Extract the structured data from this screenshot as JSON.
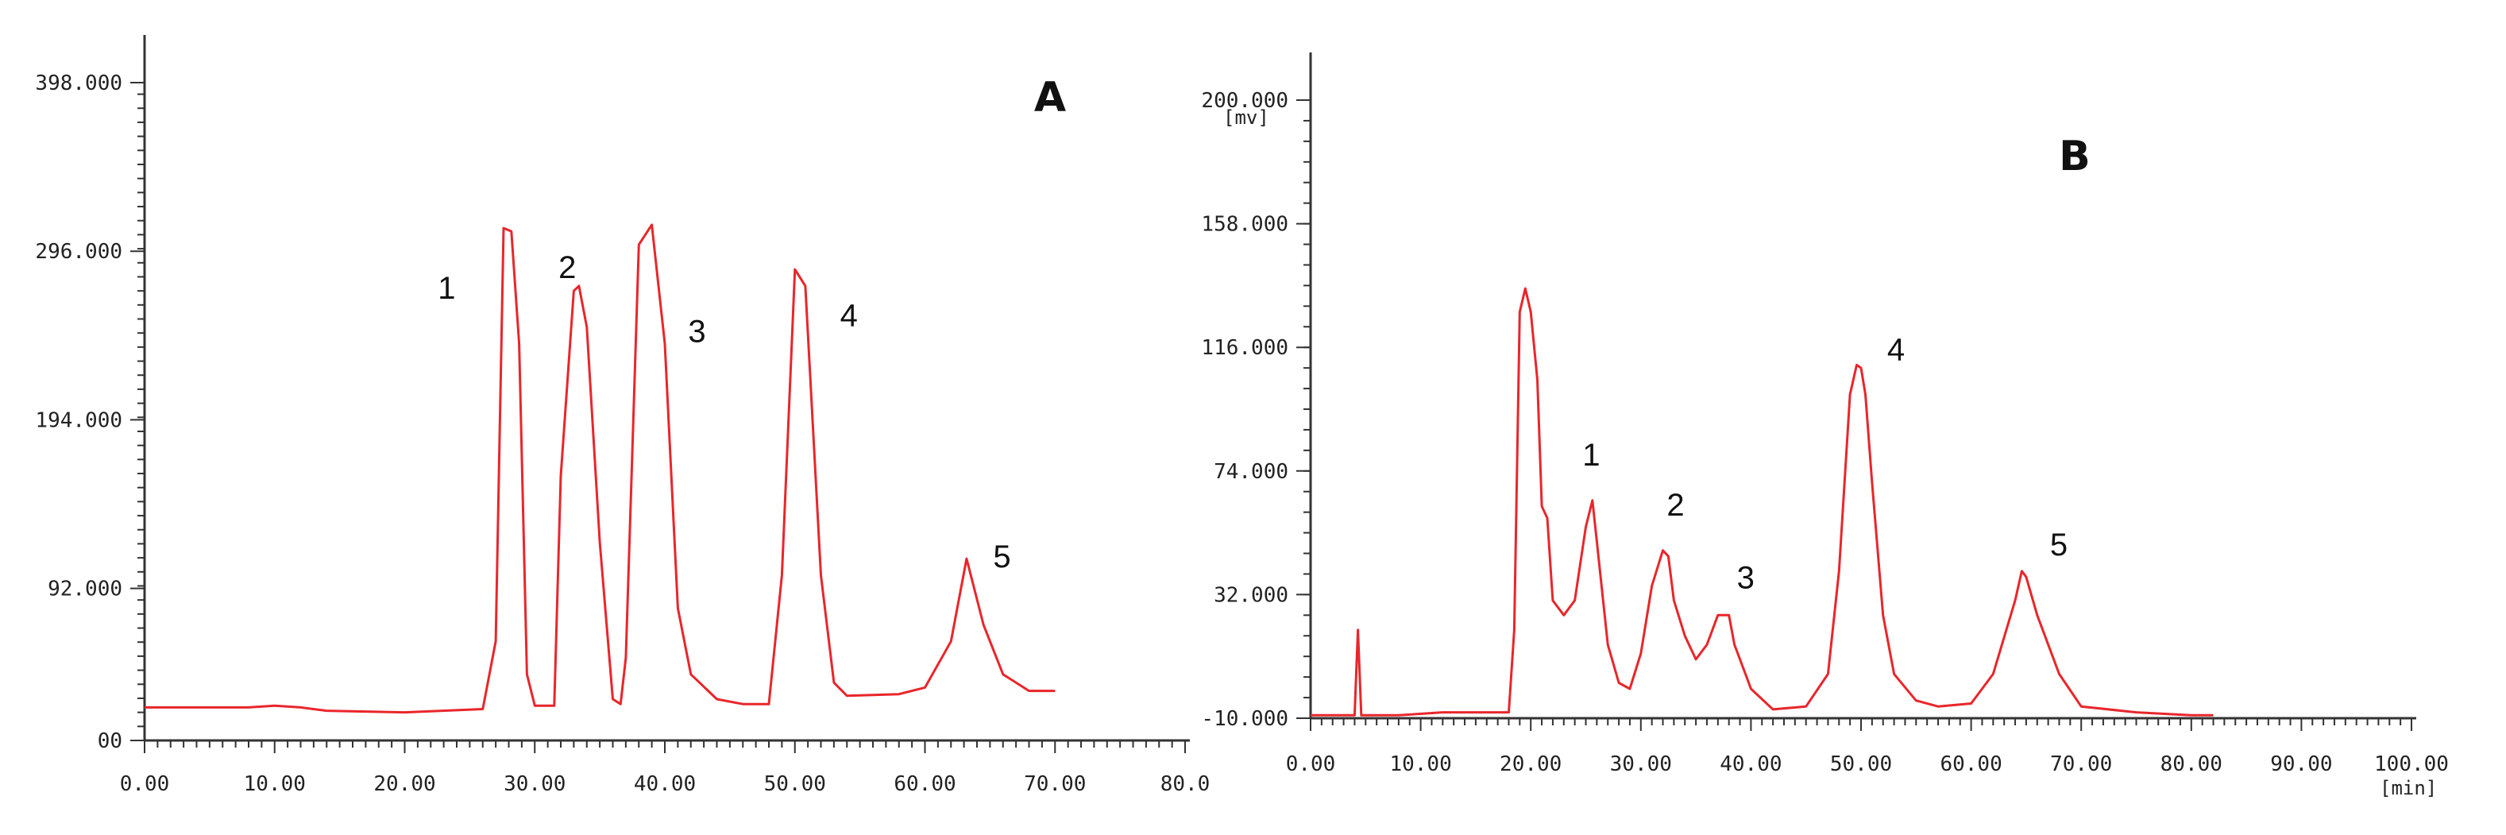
{
  "chart_data": [
    {
      "type": "line",
      "panel_label": "A",
      "x_tick_labels": [
        "0.00",
        "10.00",
        "20.00",
        "30.00",
        "40.00",
        "50.00",
        "60.00",
        "70.00",
        "80.0"
      ],
      "y_tick_labels": [
        "00",
        "92.000",
        "194.000",
        "296.000",
        "398.000"
      ],
      "x_ticks": [
        0,
        10,
        20,
        30,
        40,
        50,
        60,
        70,
        80
      ],
      "y_ticks": [
        0,
        92,
        194,
        296,
        398
      ],
      "xlim": [
        0,
        80
      ],
      "ylim": [
        0,
        398
      ],
      "grid": false,
      "color": "#e8262b",
      "series": [
        {
          "x": [
            0,
            8,
            10,
            12,
            14,
            20,
            26,
            27,
            27.6,
            28.2,
            28.8,
            29.4,
            30,
            31.5,
            32,
            33,
            33.4,
            34,
            35,
            36,
            36.6,
            37,
            38,
            39,
            40,
            41,
            42,
            44,
            46,
            48,
            49,
            50,
            50.8,
            52,
            53,
            54,
            58,
            60,
            62,
            63.2,
            64.5,
            66,
            68,
            70
          ],
          "y": [
            20,
            20,
            21,
            20,
            18,
            17,
            19,
            60,
            310,
            308,
            240,
            40,
            21,
            21,
            160,
            272,
            275,
            250,
            120,
            25,
            22,
            50,
            300,
            312,
            240,
            80,
            40,
            25,
            22,
            22,
            100,
            285,
            275,
            100,
            35,
            27,
            28,
            32,
            60,
            110,
            70,
            40,
            30,
            30
          ]
        }
      ],
      "peak_labels": [
        "1",
        "2",
        "3",
        "4",
        "5"
      ]
    },
    {
      "type": "line",
      "panel_label": "B",
      "y_unit": "[mv]",
      "x_unit": "[min]",
      "x_tick_labels": [
        "0.00",
        "10.00",
        "20.00",
        "30.00",
        "40.00",
        "50.00",
        "60.00",
        "70.00",
        "80.00",
        "90.00",
        "100.00"
      ],
      "y_tick_labels": [
        "-10.000",
        "32.000",
        "74.000",
        "116.000",
        "158.000",
        "200.000"
      ],
      "x_ticks": [
        0,
        10,
        20,
        30,
        40,
        50,
        60,
        70,
        80,
        90,
        100
      ],
      "y_ticks": [
        -10,
        32,
        74,
        116,
        158,
        200
      ],
      "xlim": [
        0,
        100
      ],
      "ylim": [
        -10,
        200
      ],
      "grid": false,
      "color": "#e8262b",
      "series": [
        {
          "x": [
            0,
            4,
            4.3,
            4.6,
            8,
            12,
            18,
            18.5,
            19,
            19.5,
            20,
            20.6,
            21,
            21.5,
            22,
            23,
            24,
            25,
            25.6,
            26,
            27,
            28,
            29,
            30,
            31,
            32,
            32.5,
            33,
            34,
            35,
            36,
            37,
            38,
            38.5,
            39.5,
            40,
            42,
            45,
            47,
            48,
            49,
            49.6,
            50,
            50.4,
            51,
            52,
            53,
            55,
            57,
            60,
            62,
            64,
            64.6,
            65,
            66,
            68,
            70,
            75,
            80,
            82
          ],
          "y": [
            -9,
            -9,
            20,
            -9,
            -9,
            -8,
            -8,
            20,
            128,
            136,
            128,
            105,
            62,
            58,
            30,
            25,
            30,
            55,
            64,
            50,
            15,
            2,
            0,
            12,
            35,
            47,
            45,
            30,
            18,
            10,
            15,
            25,
            25,
            15,
            5,
            0,
            -7,
            -6,
            5,
            40,
            100,
            110,
            109,
            100,
            70,
            25,
            5,
            -4,
            -6,
            -5,
            5,
            30,
            40,
            38,
            25,
            5,
            -6,
            -8,
            -9,
            -9
          ]
        }
      ],
      "peak_labels": [
        "1",
        "2",
        "3",
        "4",
        "5"
      ]
    }
  ]
}
